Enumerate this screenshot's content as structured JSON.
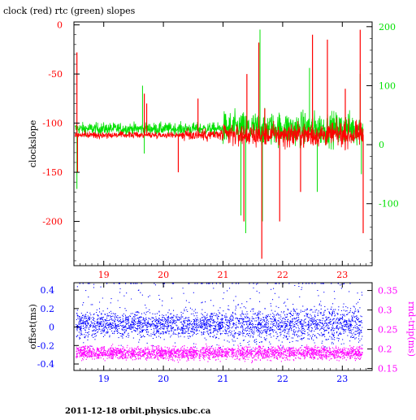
{
  "title": "clock (red) rtc (green) slopes",
  "footer": "2011-12-18 orbit.physics.ubc.ca",
  "colors": {
    "clock": "#ff0000",
    "rtc": "#00e000",
    "offset": "#0000ff",
    "rndtrip": "#ff00ff",
    "axis": "#000000"
  },
  "chart_data": [
    {
      "type": "line",
      "title": "clock (red) rtc (green) slopes",
      "xlabel": "",
      "ylabel": "clockslope",
      "y2label": "",
      "xlim": [
        18.5,
        23.5
      ],
      "ylim": [
        -245,
        3
      ],
      "y2lim": [
        -205,
        208
      ],
      "xticks": [
        "19",
        "20",
        "21",
        "22",
        "23"
      ],
      "yticks": [
        "0",
        "-50",
        "-100",
        "-150",
        "-200"
      ],
      "y2ticks": [
        "200",
        "100",
        "0",
        "-100"
      ],
      "series": [
        {
          "name": "clock",
          "axis": "left",
          "baseline": -112,
          "spikes": [
            {
              "x": 18.55,
              "y": -28
            },
            {
              "x": 18.56,
              "y": -150
            },
            {
              "x": 19.68,
              "y": -70
            },
            {
              "x": 19.72,
              "y": -80
            },
            {
              "x": 20.25,
              "y": -150
            },
            {
              "x": 20.58,
              "y": -75
            },
            {
              "x": 21.35,
              "y": -200
            },
            {
              "x": 21.4,
              "y": -50
            },
            {
              "x": 21.6,
              "y": -18
            },
            {
              "x": 21.65,
              "y": -238
            },
            {
              "x": 21.7,
              "y": -85
            },
            {
              "x": 21.95,
              "y": -200
            },
            {
              "x": 22.3,
              "y": -170
            },
            {
              "x": 22.5,
              "y": -10
            },
            {
              "x": 22.75,
              "y": -15
            },
            {
              "x": 23.05,
              "y": -65
            },
            {
              "x": 23.3,
              "y": -5
            },
            {
              "x": 23.35,
              "y": -212
            }
          ]
        },
        {
          "name": "rtc",
          "axis": "right",
          "baseline": 27,
          "spikes": [
            {
              "x": 18.55,
              "y": -75
            },
            {
              "x": 19.65,
              "y": 100
            },
            {
              "x": 19.68,
              "y": -15
            },
            {
              "x": 21.3,
              "y": -120
            },
            {
              "x": 21.38,
              "y": -150
            },
            {
              "x": 21.62,
              "y": 195
            },
            {
              "x": 21.66,
              "y": -130
            },
            {
              "x": 22.45,
              "y": 130
            },
            {
              "x": 22.58,
              "y": -80
            },
            {
              "x": 23.3,
              "y": 120
            },
            {
              "x": 23.32,
              "y": -50
            }
          ]
        }
      ]
    },
    {
      "type": "scatter",
      "xlabel": "",
      "ylabel": "offset(ms)",
      "y2label": "rnd-trip(ms)",
      "xlim": [
        18.5,
        23.5
      ],
      "ylim": [
        -0.47,
        0.48
      ],
      "y2lim": [
        0.145,
        0.37
      ],
      "xticks": [
        "19",
        "20",
        "21",
        "22",
        "23"
      ],
      "yticks": [
        "0.4",
        "0.2",
        "0",
        "-0.2",
        "-0.4"
      ],
      "y2ticks": [
        "0.35",
        "0.3",
        "0.25",
        "0.2",
        "0.15"
      ],
      "series": [
        {
          "name": "offset",
          "axis": "left",
          "center": 0.03,
          "spread": 0.22
        },
        {
          "name": "rnd-trip",
          "axis": "right",
          "center": 0.19,
          "spread": 0.03
        }
      ]
    }
  ]
}
